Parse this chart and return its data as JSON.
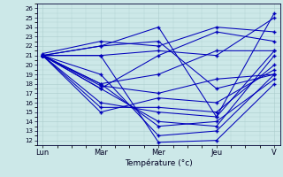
{
  "xlabel": "Température (°c)",
  "xlim": [
    -0.1,
    4.1
  ],
  "ylim": [
    11.5,
    26.5
  ],
  "yticks": [
    12,
    13,
    14,
    15,
    16,
    17,
    18,
    19,
    20,
    21,
    22,
    23,
    24,
    25,
    26
  ],
  "xtick_labels": [
    "Lun",
    "Mar",
    "Mer",
    "Jeu",
    "V"
  ],
  "xtick_positions": [
    0,
    1,
    2,
    3,
    4
  ],
  "background_color": "#cce8e8",
  "grid_color": "#aacccc",
  "line_color": "#0000bb",
  "marker": "+",
  "markersize": 3.5,
  "markeredgewidth": 1.0,
  "linewidth": 0.75,
  "series": [
    [
      21.0,
      21.0,
      11.8,
      12.0,
      18.0
    ],
    [
      21.0,
      19.0,
      12.5,
      13.0,
      19.0
    ],
    [
      21.0,
      18.0,
      13.5,
      14.0,
      18.5
    ],
    [
      21.0,
      17.5,
      14.0,
      13.5,
      21.0
    ],
    [
      21.0,
      16.0,
      15.0,
      14.5,
      21.5
    ],
    [
      21.0,
      15.5,
      15.5,
      15.0,
      20.0
    ],
    [
      21.0,
      15.0,
      16.5,
      16.0,
      19.5
    ],
    [
      21.0,
      17.8,
      17.0,
      18.5,
      19.0
    ],
    [
      21.0,
      18.0,
      19.0,
      21.5,
      21.5
    ],
    [
      21.0,
      17.5,
      21.0,
      23.5,
      22.5
    ],
    [
      21.2,
      22.5,
      22.0,
      24.0,
      23.5
    ],
    [
      21.0,
      22.0,
      22.5,
      17.5,
      19.0
    ],
    [
      21.0,
      22.0,
      24.0,
      14.5,
      25.5
    ],
    [
      21.0,
      21.0,
      21.5,
      21.0,
      25.0
    ]
  ]
}
